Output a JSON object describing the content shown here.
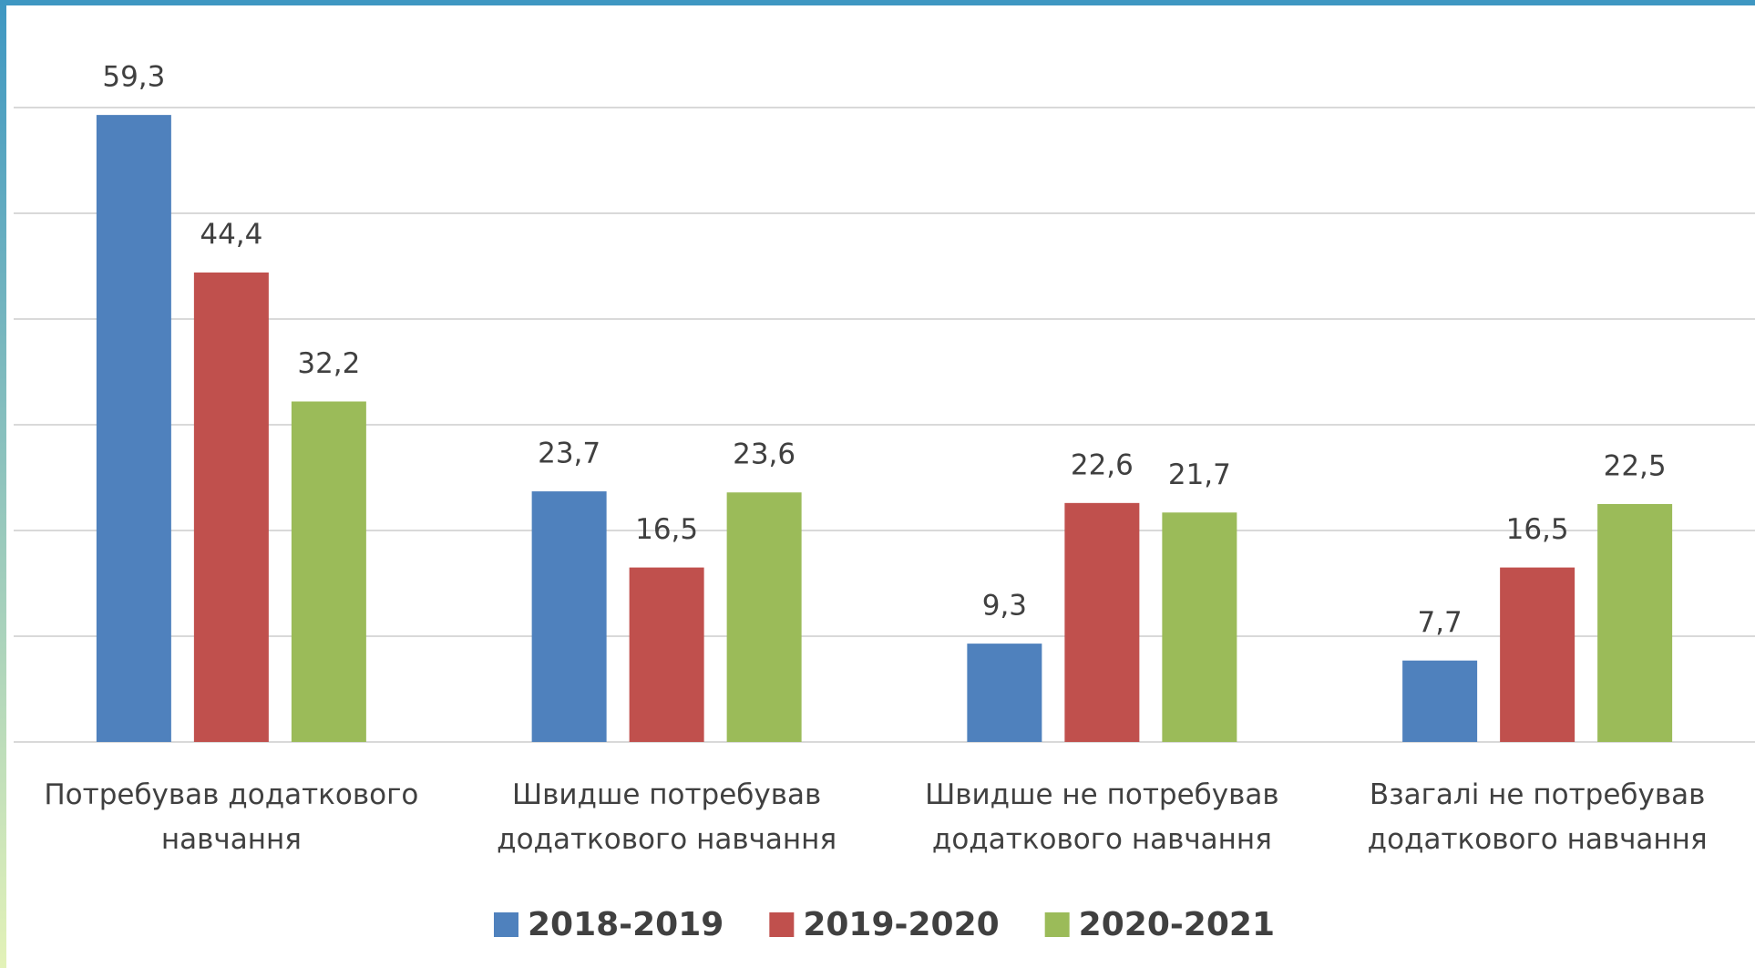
{
  "chart_data": {
    "type": "bar",
    "categories": [
      "Потребував додаткового навчання",
      "Швидше потребував додаткового навчання",
      "Швидше не потребував додаткового навчання",
      "Взагалі не потребував додаткового навчання"
    ],
    "series": [
      {
        "name": "2018-2019",
        "color": "#4f81bd",
        "values": [
          59.3,
          23.7,
          9.3,
          7.7
        ],
        "value_labels": [
          "59,3",
          "23,7",
          "9,3",
          "7,7"
        ]
      },
      {
        "name": "2019-2020",
        "color": "#c0504d",
        "values": [
          44.4,
          16.5,
          22.6,
          16.5
        ],
        "value_labels": [
          "44,4",
          "16,5",
          "22,6",
          "16,5"
        ]
      },
      {
        "name": "2020-2021",
        "color": "#9bbb59",
        "values": [
          32.2,
          23.6,
          21.7,
          22.5
        ],
        "value_labels": [
          "32,2",
          "23,6",
          "21,7",
          "22,5"
        ]
      }
    ],
    "ylim": [
      0,
      60
    ],
    "yticks": [
      0,
      10,
      20,
      30,
      40,
      50,
      60
    ],
    "grid": true,
    "legend": "bottom"
  }
}
